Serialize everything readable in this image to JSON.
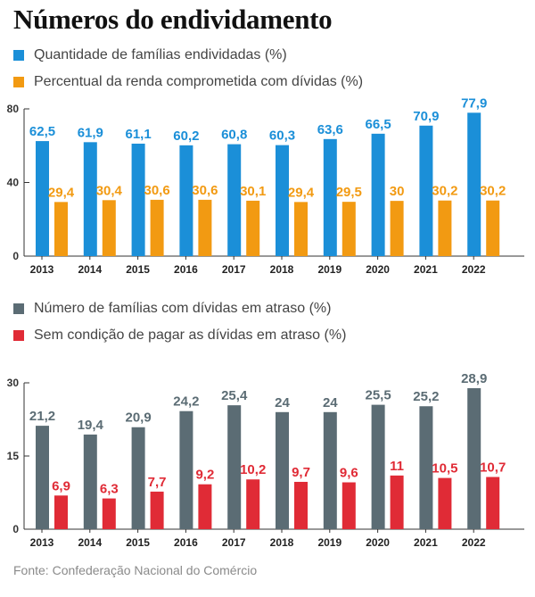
{
  "title": "Números do endividamento",
  "source": "Fonte: Confederação Nacional do Comércio",
  "colors": {
    "blue": "#1B8FD8",
    "orange": "#F29A12",
    "gray": "#5B6C74",
    "red": "#E02B36"
  },
  "chart_data": [
    {
      "type": "bar",
      "categories": [
        "2013",
        "2014",
        "2015",
        "2016",
        "2017",
        "2018",
        "2019",
        "2020",
        "2021",
        "2022"
      ],
      "series": [
        {
          "name": "Quantidade de famílias endividadas (%)",
          "color": "#1B8FD8",
          "values": [
            62.5,
            61.9,
            61.1,
            60.2,
            60.8,
            60.3,
            63.6,
            66.5,
            70.9,
            77.9
          ],
          "labels": [
            "62,5",
            "61,9",
            "61,1",
            "60,2",
            "60,8",
            "60,3",
            "63,6",
            "66,5",
            "70,9",
            "77,9"
          ]
        },
        {
          "name": "Percentual da renda comprometida com dívidas (%)",
          "color": "#F29A12",
          "values": [
            29.4,
            30.4,
            30.6,
            30.6,
            30.1,
            29.4,
            29.5,
            30,
            30.2,
            30.2
          ],
          "labels": [
            "29,4",
            "30,4",
            "30,6",
            "30,6",
            "30,1",
            "29,4",
            "29,5",
            "30",
            "30,2",
            "30,2"
          ]
        }
      ],
      "yticks": [
        0,
        40,
        80
      ],
      "ylim": [
        0,
        80
      ],
      "grid": false
    },
    {
      "type": "bar",
      "categories": [
        "2013",
        "2014",
        "2015",
        "2016",
        "2017",
        "2018",
        "2019",
        "2020",
        "2021",
        "2022"
      ],
      "series": [
        {
          "name": "Número de famílias com dívidas em atraso (%)",
          "color": "#5B6C74",
          "values": [
            21.2,
            19.4,
            20.9,
            24.2,
            25.4,
            24,
            24,
            25.5,
            25.2,
            28.9
          ],
          "labels": [
            "21,2",
            "19,4",
            "20,9",
            "24,2",
            "25,4",
            "24",
            "24",
            "25,5",
            "25,2",
            "28,9"
          ]
        },
        {
          "name": "Sem condição de pagar as dívidas em atraso (%)",
          "color": "#E02B36",
          "values": [
            6.9,
            6.3,
            7.7,
            9.2,
            10.2,
            9.7,
            9.6,
            11,
            10.5,
            10.7
          ],
          "labels": [
            "6,9",
            "6,3",
            "7,7",
            "9,2",
            "10,2",
            "9,7",
            "9,6",
            "11",
            "10,5",
            "10,7"
          ]
        }
      ],
      "yticks": [
        0,
        15,
        30
      ],
      "ylim": [
        0,
        30
      ],
      "grid": false
    }
  ]
}
